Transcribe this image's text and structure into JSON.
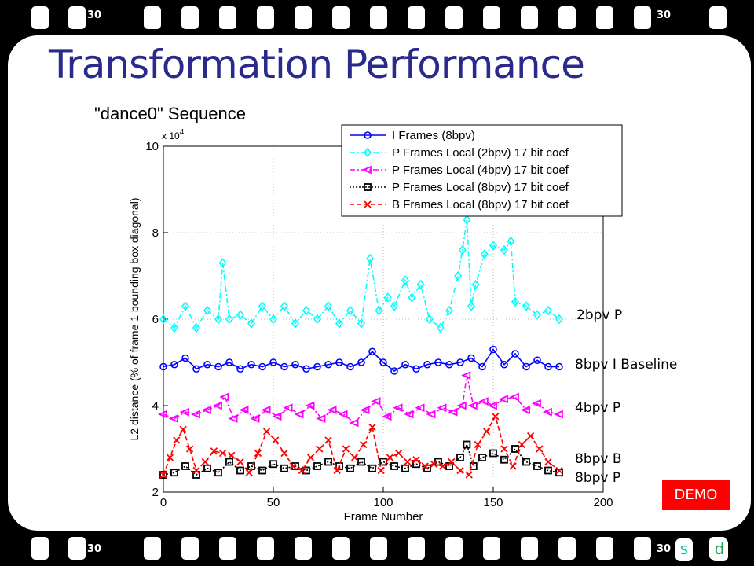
{
  "slide": {
    "title": "Transformation Performance",
    "demo_button": "DEMO",
    "nav_s": "s",
    "nav_d": "d"
  },
  "filmstrip": {
    "top_left": "30",
    "top_right": "30",
    "bottom_left": "30",
    "bottom_right": "30"
  },
  "annotations": {
    "p2": "2bpv P",
    "i8": "8bpv I Baseline",
    "p4": "4bpv P",
    "b8": "8bpv B",
    "p8": "8bpv P"
  },
  "colors": {
    "i_frames": "#0000ff",
    "p2": "#00ffff",
    "p4": "#ff00ff",
    "p8": "#000000",
    "b8": "#ff0000",
    "title": "#2a2a8c"
  },
  "chart_data": {
    "type": "line",
    "title": "\"dance0\" Sequence",
    "xlabel": "Frame Number",
    "ylabel": "L2 distance (% of frame 1 bounding box diagonal)",
    "y_multiplier": "x 10^4",
    "xlim": [
      0,
      200
    ],
    "ylim": [
      2,
      10
    ],
    "xticks": [
      0,
      50,
      100,
      150,
      200
    ],
    "yticks": [
      2,
      4,
      6,
      8,
      10
    ],
    "grid": true,
    "legend_position": "top-right",
    "series": [
      {
        "name": "I  Frames (8bpv)",
        "color": "#0000ff",
        "marker": "circle",
        "dash": "solid",
        "x": [
          0,
          5,
          10,
          15,
          20,
          25,
          30,
          35,
          40,
          45,
          50,
          55,
          60,
          65,
          70,
          75,
          80,
          85,
          90,
          95,
          100,
          105,
          110,
          115,
          120,
          125,
          130,
          135,
          140,
          145,
          150,
          155,
          160,
          165,
          170,
          175,
          180
        ],
        "y": [
          4.9,
          4.95,
          5.1,
          4.85,
          4.95,
          4.9,
          5.0,
          4.85,
          4.95,
          4.9,
          5.0,
          4.9,
          4.95,
          4.85,
          4.9,
          4.95,
          5.0,
          4.9,
          5.0,
          5.25,
          5.0,
          4.8,
          4.95,
          4.85,
          4.95,
          5.0,
          4.95,
          5.0,
          5.1,
          4.9,
          5.3,
          4.95,
          5.2,
          4.9,
          5.05,
          4.9,
          4.9
        ]
      },
      {
        "name": "P  Frames Local (2bpv) 17 bit coef",
        "color": "#00ffff",
        "marker": "diamond",
        "dash": "dashdot",
        "x": [
          0,
          5,
          10,
          15,
          20,
          25,
          27,
          30,
          35,
          40,
          45,
          50,
          55,
          60,
          65,
          70,
          75,
          80,
          85,
          90,
          94,
          98,
          102,
          105,
          110,
          113,
          117,
          121,
          126,
          130,
          134,
          136,
          138,
          140,
          142,
          146,
          150,
          155,
          158,
          160,
          165,
          170,
          175,
          180
        ],
        "y": [
          6.0,
          5.8,
          6.3,
          5.8,
          6.2,
          6.0,
          7.3,
          6.0,
          6.1,
          5.9,
          6.3,
          6.0,
          6.3,
          5.9,
          6.2,
          6.0,
          6.3,
          5.9,
          6.2,
          5.9,
          7.4,
          6.2,
          6.5,
          6.3,
          6.9,
          6.5,
          6.8,
          6.0,
          5.8,
          6.2,
          7.0,
          7.6,
          8.3,
          6.3,
          6.8,
          7.5,
          7.7,
          7.6,
          7.8,
          6.4,
          6.3,
          6.1,
          6.2,
          6.0
        ]
      },
      {
        "name": "P  Frames Local (4bpv) 17 bit coef",
        "color": "#ff00ff",
        "marker": "triangle-left",
        "dash": "dashdot",
        "x": [
          0,
          5,
          10,
          15,
          20,
          25,
          28,
          32,
          37,
          42,
          47,
          52,
          57,
          62,
          67,
          72,
          77,
          82,
          87,
          92,
          97,
          102,
          107,
          112,
          117,
          122,
          127,
          132,
          136,
          138,
          141,
          146,
          150,
          155,
          160,
          165,
          170,
          175,
          180
        ],
        "y": [
          3.8,
          3.7,
          3.85,
          3.8,
          3.9,
          4.0,
          4.2,
          3.7,
          3.9,
          3.7,
          3.9,
          3.75,
          3.95,
          3.8,
          4.0,
          3.7,
          3.9,
          3.8,
          3.6,
          3.9,
          4.1,
          3.75,
          3.95,
          3.8,
          3.95,
          3.8,
          3.95,
          3.85,
          4.0,
          4.7,
          4.0,
          4.1,
          4.0,
          4.15,
          4.2,
          3.9,
          4.05,
          3.85,
          3.8
        ]
      },
      {
        "name": "P  Frames Local (8bpv) 17 bit coef",
        "color": "#000000",
        "marker": "square",
        "dash": "dotted",
        "x": [
          0,
          5,
          10,
          15,
          20,
          25,
          30,
          35,
          40,
          45,
          50,
          55,
          60,
          65,
          70,
          75,
          80,
          85,
          90,
          95,
          100,
          105,
          110,
          115,
          120,
          125,
          130,
          135,
          138,
          141,
          145,
          150,
          155,
          160,
          165,
          170,
          175,
          180
        ],
        "y": [
          2.4,
          2.45,
          2.6,
          2.4,
          2.55,
          2.45,
          2.7,
          2.5,
          2.6,
          2.5,
          2.65,
          2.55,
          2.6,
          2.5,
          2.6,
          2.7,
          2.6,
          2.55,
          2.7,
          2.55,
          2.7,
          2.6,
          2.55,
          2.65,
          2.55,
          2.7,
          2.6,
          2.8,
          3.1,
          2.6,
          2.8,
          2.9,
          2.75,
          3.0,
          2.7,
          2.6,
          2.5,
          2.45
        ]
      },
      {
        "name": "B  Frames Local (8bpv) 17 bit coef",
        "color": "#ff0000",
        "marker": "x",
        "dash": "dashed",
        "x": [
          0,
          3,
          6,
          9,
          12,
          15,
          19,
          23,
          27,
          31,
          35,
          39,
          43,
          47,
          51,
          55,
          59,
          63,
          67,
          71,
          75,
          79,
          83,
          87,
          91,
          95,
          99,
          103,
          107,
          111,
          115,
          119,
          123,
          127,
          131,
          135,
          139,
          143,
          147,
          151,
          155,
          159,
          163,
          167,
          171,
          175,
          180
        ],
        "y": [
          2.4,
          2.8,
          3.2,
          3.45,
          3.0,
          2.5,
          2.7,
          2.95,
          2.9,
          2.85,
          2.7,
          2.45,
          2.9,
          3.4,
          3.2,
          2.9,
          2.6,
          2.5,
          2.8,
          3.0,
          3.2,
          2.5,
          3.0,
          2.8,
          3.1,
          3.5,
          2.5,
          2.8,
          2.9,
          2.7,
          2.75,
          2.6,
          2.65,
          2.6,
          2.7,
          2.5,
          2.4,
          3.1,
          3.4,
          3.75,
          3.0,
          2.6,
          3.1,
          3.3,
          3.0,
          2.7,
          2.5
        ]
      }
    ]
  }
}
